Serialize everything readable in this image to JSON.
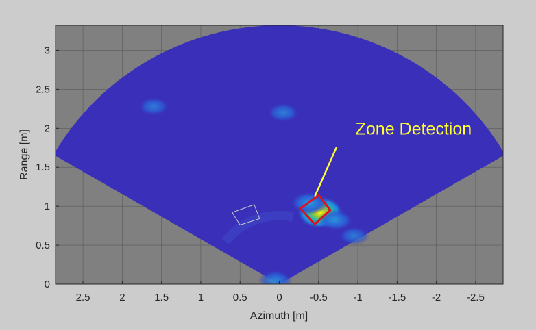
{
  "chart_data": {
    "type": "heatmap",
    "title": "",
    "xlabel": "Azimuth [m]",
    "ylabel": "Range [m]",
    "xlim": [
      2.85,
      -2.85
    ],
    "ylim": [
      0,
      3.32
    ],
    "x_reversed": true,
    "grid": true,
    "x_ticks": [
      2.5,
      2,
      1.5,
      1,
      0.5,
      0,
      -0.5,
      -1,
      -1.5,
      -2,
      -2.5
    ],
    "x_tick_labels": [
      "2.5",
      "2",
      "1.5",
      "1",
      "0.5",
      "0",
      "-0.5",
      "-1",
      "-1.5",
      "-2",
      "-2.5"
    ],
    "y_ticks": [
      0,
      0.5,
      1,
      1.5,
      2,
      2.5,
      3
    ],
    "y_tick_labels": [
      "0",
      "0.5",
      "1",
      "1.5",
      "2",
      "2.5",
      "3"
    ],
    "colormap": "parula",
    "sector": {
      "max_range": 3.32,
      "half_angle_deg": 60
    },
    "hotspots": [
      {
        "x": -0.52,
        "y": 0.92,
        "intensity": 1.0
      },
      {
        "x": -0.38,
        "y": 1.04,
        "intensity": 0.55
      },
      {
        "x": -0.72,
        "y": 0.82,
        "intensity": 0.45
      },
      {
        "x": -0.95,
        "y": 0.62,
        "intensity": 0.3
      },
      {
        "x": 1.6,
        "y": 2.28,
        "intensity": 0.32
      },
      {
        "x": -0.05,
        "y": 2.2,
        "intensity": 0.35
      },
      {
        "x": 0.05,
        "y": 0.05,
        "intensity": 0.4
      }
    ],
    "zones": [
      {
        "name": "zone-1",
        "corners": [
          [
            0.6,
            0.92
          ],
          [
            0.32,
            1.02
          ],
          [
            0.25,
            0.84
          ],
          [
            0.5,
            0.76
          ]
        ],
        "color": "#c8c8c8"
      },
      {
        "name": "zone-2",
        "corners": [
          [
            -0.27,
            0.97
          ],
          [
            -0.5,
            1.14
          ],
          [
            -0.65,
            0.95
          ],
          [
            -0.45,
            0.77
          ]
        ],
        "color": "#e0101c"
      }
    ],
    "annotations": [
      {
        "text": "Zone Detection",
        "text_x": -0.97,
        "text_y": 1.92,
        "arrow_from": [
          -0.73,
          1.76
        ],
        "arrow_to": [
          -0.45,
          1.12
        ],
        "color": "#ffff33"
      }
    ],
    "colors": {
      "background": "#cccccc",
      "plot_bg": "#808080",
      "field": "#3a2fb8",
      "grid": "#5a5a5a"
    }
  }
}
